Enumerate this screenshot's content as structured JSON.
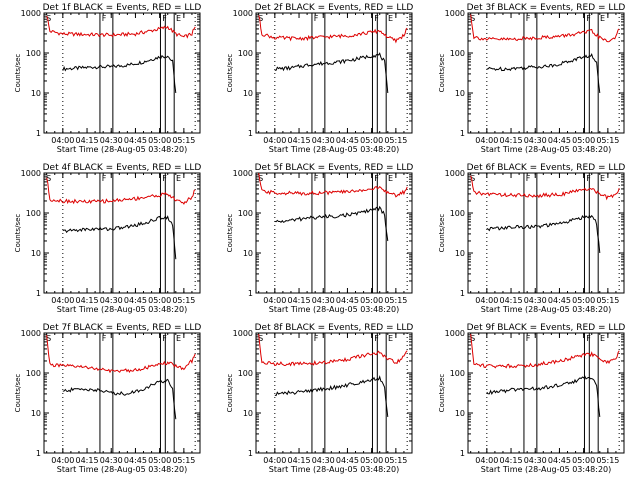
{
  "colors": {
    "events": "#000000",
    "lld": "#dd0000",
    "axis": "#000000"
  },
  "chart_data": [
    {
      "type": "line",
      "title": "Det 1f BLACK = Events, RED = LLD",
      "xlabel": "Start Time (28-Aug-05 03:48:20)",
      "ylabel": "Counts/sec",
      "yscale": "log",
      "ylim": [
        1,
        1000
      ],
      "y_ticks": [
        1,
        10,
        100,
        1000
      ],
      "x_ticks": [
        "04:00",
        "04:15",
        "04:30",
        "04:45",
        "05:00",
        "05:15"
      ],
      "markers": [
        "S",
        "F",
        "F",
        "E"
      ],
      "series": [
        {
          "name": "Events",
          "x": [
            "04:00",
            "04:10",
            "04:20",
            "04:30",
            "04:40",
            "04:50",
            "05:00",
            "05:05",
            "05:08",
            "05:10"
          ],
          "y": [
            40,
            42,
            45,
            45,
            50,
            60,
            80,
            85,
            60,
            10
          ]
        },
        {
          "name": "LLD",
          "x": [
            "03:50",
            "03:52",
            "04:00",
            "04:15",
            "04:30",
            "04:45",
            "05:00",
            "05:05",
            "05:10",
            "05:15",
            "05:20",
            "05:22"
          ],
          "y": [
            900,
            350,
            300,
            290,
            280,
            300,
            400,
            450,
            300,
            250,
            300,
            450
          ]
        }
      ]
    },
    {
      "type": "line",
      "title": "Det 2f BLACK = Events, RED = LLD",
      "xlabel": "Start Time (28-Aug-05 03:48:20)",
      "ylabel": "Counts/sec",
      "yscale": "log",
      "ylim": [
        1,
        1000
      ],
      "y_ticks": [
        1,
        10,
        100,
        1000
      ],
      "x_ticks": [
        "04:00",
        "04:15",
        "04:30",
        "04:45",
        "05:00",
        "05:15"
      ],
      "markers": [
        "S",
        "F",
        "F",
        "E"
      ],
      "series": [
        {
          "name": "Events",
          "x": [
            "04:00",
            "04:10",
            "04:20",
            "04:30",
            "04:40",
            "04:50",
            "05:00",
            "05:05",
            "05:08",
            "05:10"
          ],
          "y": [
            40,
            42,
            50,
            55,
            60,
            70,
            85,
            90,
            60,
            10
          ]
        },
        {
          "name": "LLD",
          "x": [
            "03:50",
            "03:52",
            "04:00",
            "04:15",
            "04:30",
            "04:45",
            "05:00",
            "05:05",
            "05:10",
            "05:15",
            "05:20",
            "05:22"
          ],
          "y": [
            900,
            300,
            240,
            230,
            250,
            270,
            330,
            360,
            250,
            200,
            280,
            420
          ]
        }
      ]
    },
    {
      "type": "line",
      "title": "Det 3f BLACK = Events, RED = LLD",
      "xlabel": "Start Time (28-Aug-05 03:48:20)",
      "ylabel": "Counts/sec",
      "yscale": "log",
      "ylim": [
        1,
        1000
      ],
      "y_ticks": [
        1,
        10,
        100,
        1000
      ],
      "x_ticks": [
        "04:00",
        "04:15",
        "04:30",
        "04:45",
        "05:00",
        "05:15"
      ],
      "markers": [
        "S",
        "F",
        "F",
        "E"
      ],
      "series": [
        {
          "name": "Events",
          "x": [
            "04:00",
            "04:10",
            "04:20",
            "04:30",
            "04:40",
            "04:50",
            "05:00",
            "05:05",
            "05:08",
            "05:10"
          ],
          "y": [
            40,
            40,
            42,
            45,
            48,
            60,
            80,
            85,
            55,
            10
          ]
        },
        {
          "name": "LLD",
          "x": [
            "03:50",
            "03:52",
            "04:00",
            "04:15",
            "04:30",
            "04:45",
            "05:00",
            "05:05",
            "05:10",
            "05:15",
            "05:20",
            "05:22"
          ],
          "y": [
            900,
            250,
            220,
            220,
            240,
            260,
            320,
            350,
            240,
            190,
            260,
            400
          ]
        }
      ]
    },
    {
      "type": "line",
      "title": "Det 4f BLACK = Events, RED = LLD",
      "xlabel": "Start Time (28-Aug-05 03:48:20)",
      "ylabel": "Counts/sec",
      "yscale": "log",
      "ylim": [
        1,
        1000
      ],
      "y_ticks": [
        1,
        10,
        100,
        1000
      ],
      "x_ticks": [
        "04:00",
        "04:15",
        "04:30",
        "04:45",
        "05:00",
        "05:15"
      ],
      "markers": [
        "S",
        "F",
        "F",
        "E"
      ],
      "series": [
        {
          "name": "Events",
          "x": [
            "04:00",
            "04:10",
            "04:20",
            "04:30",
            "04:40",
            "04:50",
            "05:00",
            "05:05",
            "05:08",
            "05:10"
          ],
          "y": [
            35,
            38,
            40,
            40,
            45,
            55,
            75,
            80,
            50,
            7
          ]
        },
        {
          "name": "LLD",
          "x": [
            "03:50",
            "03:52",
            "04:00",
            "04:15",
            "04:30",
            "04:45",
            "05:00",
            "05:05",
            "05:10",
            "05:15",
            "05:20",
            "05:22"
          ],
          "y": [
            800,
            220,
            200,
            190,
            200,
            230,
            280,
            300,
            210,
            180,
            250,
            380
          ]
        }
      ]
    },
    {
      "type": "line",
      "title": "Det 5f BLACK = Events, RED = LLD",
      "xlabel": "Start Time (28-Aug-05 03:48:20)",
      "ylabel": "Counts/sec",
      "yscale": "log",
      "ylim": [
        1,
        1000
      ],
      "y_ticks": [
        1,
        10,
        100,
        1000
      ],
      "x_ticks": [
        "04:00",
        "04:15",
        "04:30",
        "04:45",
        "05:00",
        "05:15"
      ],
      "markers": [
        "S",
        "F",
        "F",
        "E"
      ],
      "series": [
        {
          "name": "Events",
          "x": [
            "04:00",
            "04:10",
            "04:20",
            "04:30",
            "04:40",
            "04:50",
            "05:00",
            "05:05",
            "05:08",
            "05:10"
          ],
          "y": [
            60,
            65,
            75,
            80,
            85,
            95,
            120,
            130,
            90,
            20
          ]
        },
        {
          "name": "LLD",
          "x": [
            "03:50",
            "03:52",
            "04:00",
            "04:15",
            "04:30",
            "04:45",
            "05:00",
            "05:05",
            "05:10",
            "05:15",
            "05:20",
            "05:22"
          ],
          "y": [
            900,
            350,
            320,
            310,
            320,
            340,
            400,
            430,
            320,
            280,
            330,
            450
          ]
        }
      ]
    },
    {
      "type": "line",
      "title": "Det 6f BLACK = Events, RED = LLD",
      "xlabel": "Start Time (28-Aug-05 03:48:20)",
      "ylabel": "Counts/sec",
      "yscale": "log",
      "ylim": [
        1,
        1000
      ],
      "y_ticks": [
        1,
        10,
        100,
        1000
      ],
      "x_ticks": [
        "04:00",
        "04:15",
        "04:30",
        "04:45",
        "05:00",
        "05:15"
      ],
      "markers": [
        "S",
        "F",
        "F",
        "E"
      ],
      "series": [
        {
          "name": "Events",
          "x": [
            "04:00",
            "04:10",
            "04:20",
            "04:30",
            "04:40",
            "04:50",
            "05:00",
            "05:05",
            "05:08",
            "05:10"
          ],
          "y": [
            40,
            42,
            45,
            45,
            50,
            60,
            80,
            85,
            55,
            10
          ]
        },
        {
          "name": "LLD",
          "x": [
            "03:50",
            "03:52",
            "04:00",
            "04:15",
            "04:30",
            "04:45",
            "05:00",
            "05:05",
            "05:10",
            "05:15",
            "05:20",
            "05:22"
          ],
          "y": [
            900,
            320,
            300,
            280,
            270,
            290,
            380,
            420,
            290,
            240,
            290,
            420
          ]
        }
      ]
    },
    {
      "type": "line",
      "title": "Det 7f BLACK = Events, RED = LLD",
      "xlabel": "Start Time (28-Aug-05 03:48:20)",
      "ylabel": "Counts/sec",
      "yscale": "log",
      "ylim": [
        1,
        1000
      ],
      "y_ticks": [
        1,
        10,
        100,
        1000
      ],
      "x_ticks": [
        "04:00",
        "04:15",
        "04:30",
        "04:45",
        "05:00",
        "05:15"
      ],
      "markers": [
        "S",
        "F",
        "F",
        "E"
      ],
      "series": [
        {
          "name": "Events",
          "x": [
            "04:00",
            "04:10",
            "04:20",
            "04:30",
            "04:40",
            "04:50",
            "05:00",
            "05:05",
            "05:08",
            "05:10"
          ],
          "y": [
            35,
            40,
            38,
            32,
            30,
            40,
            60,
            65,
            40,
            7
          ]
        },
        {
          "name": "LLD",
          "x": [
            "03:50",
            "03:52",
            "04:00",
            "04:15",
            "04:30",
            "04:45",
            "05:00",
            "05:05",
            "05:10",
            "05:15",
            "05:20",
            "05:22"
          ],
          "y": [
            900,
            160,
            150,
            140,
            110,
            120,
            160,
            180,
            150,
            130,
            200,
            300
          ]
        }
      ]
    },
    {
      "type": "line",
      "title": "Det 8f BLACK = Events, RED = LLD",
      "xlabel": "Start Time (28-Aug-05 03:48:20)",
      "ylabel": "Counts/sec",
      "yscale": "log",
      "ylim": [
        1,
        1000
      ],
      "y_ticks": [
        1,
        10,
        100,
        1000
      ],
      "x_ticks": [
        "04:00",
        "04:15",
        "04:30",
        "04:45",
        "05:00",
        "05:15"
      ],
      "markers": [
        "S",
        "F",
        "F",
        "E"
      ],
      "series": [
        {
          "name": "Events",
          "x": [
            "04:00",
            "04:10",
            "04:20",
            "04:30",
            "04:40",
            "04:50",
            "05:00",
            "05:05",
            "05:08",
            "05:10"
          ],
          "y": [
            30,
            32,
            35,
            40,
            45,
            55,
            70,
            75,
            45,
            8
          ]
        },
        {
          "name": "LLD",
          "x": [
            "03:50",
            "03:52",
            "04:00",
            "04:15",
            "04:30",
            "04:45",
            "05:00",
            "05:05",
            "05:10",
            "05:15",
            "05:20",
            "05:22"
          ],
          "y": [
            900,
            180,
            170,
            170,
            180,
            220,
            300,
            320,
            220,
            180,
            250,
            360
          ]
        }
      ]
    },
    {
      "type": "line",
      "title": "Det 9f BLACK = Events, RED = LLD",
      "xlabel": "Start Time (28-Aug-05 03:48:20)",
      "ylabel": "Counts/sec",
      "yscale": "log",
      "ylim": [
        1,
        1000
      ],
      "y_ticks": [
        1,
        10,
        100,
        1000
      ],
      "x_ticks": [
        "04:00",
        "04:15",
        "04:30",
        "04:45",
        "05:00",
        "05:15"
      ],
      "markers": [
        "S",
        "F",
        "F",
        "E"
      ],
      "series": [
        {
          "name": "Events",
          "x": [
            "04:00",
            "04:10",
            "04:20",
            "04:30",
            "04:40",
            "04:50",
            "05:00",
            "05:05",
            "05:08",
            "05:10"
          ],
          "y": [
            32,
            35,
            40,
            40,
            45,
            55,
            75,
            80,
            50,
            8
          ]
        },
        {
          "name": "LLD",
          "x": [
            "03:50",
            "03:52",
            "04:00",
            "04:15",
            "04:30",
            "04:45",
            "05:00",
            "05:05",
            "05:10",
            "05:15",
            "05:20",
            "05:22"
          ],
          "y": [
            900,
            170,
            150,
            150,
            160,
            200,
            280,
            300,
            220,
            180,
            240,
            360
          ]
        }
      ]
    }
  ]
}
